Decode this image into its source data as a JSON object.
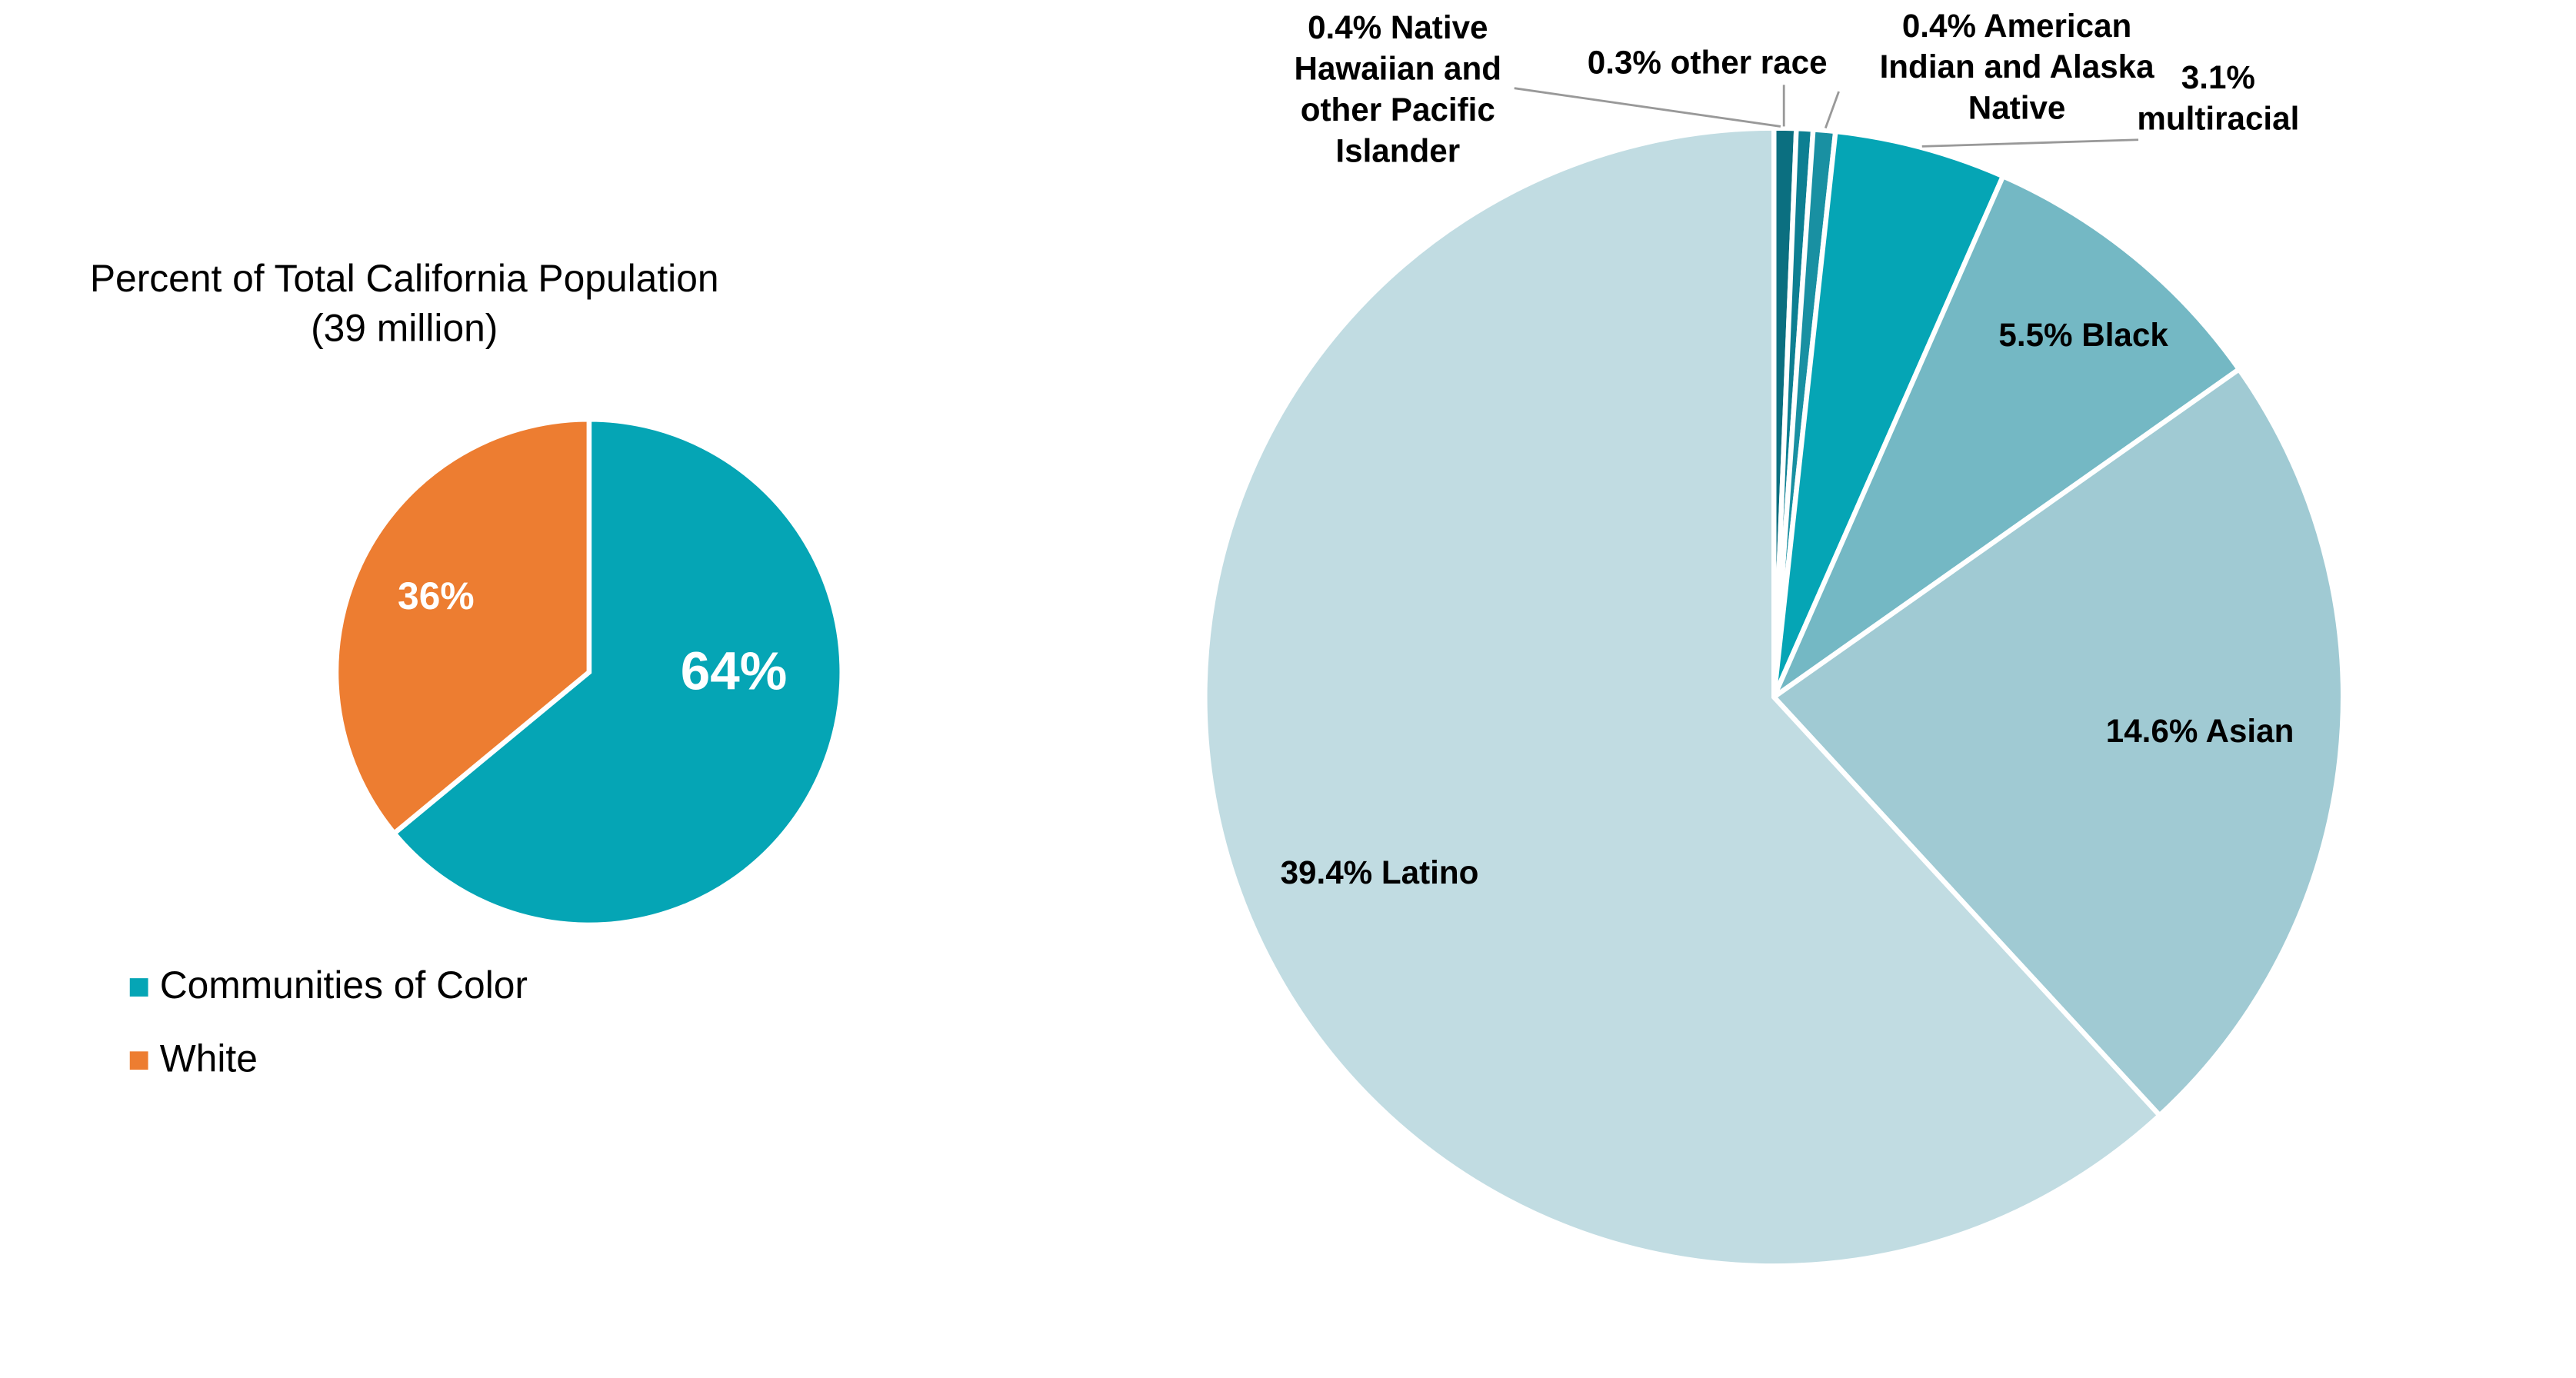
{
  "chart_data": [
    {
      "type": "pie",
      "title": "Percent of Total California Population",
      "subtitle": "(39 million)",
      "categories": [
        "Communities of Color",
        "White"
      ],
      "values": [
        64,
        36
      ],
      "value_labels": [
        "64%",
        "36%"
      ],
      "colors": [
        "#05a5b5",
        "#ed7d31"
      ]
    },
    {
      "type": "pie",
      "categories": [
        "0.4% Native Hawaiian and other Pacific Islander",
        "0.3% other race",
        "0.4% American Indian and Alaska Native",
        "3.1% multiracial",
        "5.5% Black",
        "14.6% Asian",
        "39.4% Latino"
      ],
      "values": [
        0.4,
        0.3,
        0.4,
        3.1,
        5.5,
        14.6,
        39.4
      ],
      "colors": [
        "#0b6f80",
        "#0d7f92",
        "#1990a2",
        "#05a5b5",
        "#74b8c4",
        "#a0cad3",
        "#c1dce2"
      ]
    }
  ]
}
